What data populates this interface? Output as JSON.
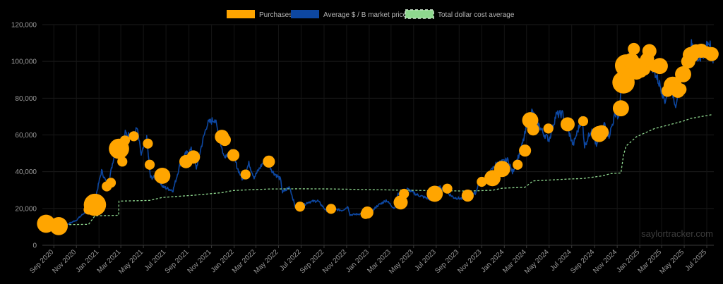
{
  "chart_data": {
    "type": "scatter",
    "title": "",
    "xlabel": "",
    "ylabel": "",
    "ylim": [
      0,
      120000
    ],
    "y_ticks": [
      0,
      20000,
      40000,
      60000,
      80000,
      100000,
      120000
    ],
    "y_tick_labels": [
      "0",
      "20,000",
      "40,000",
      "60,000",
      "80,000",
      "100,000",
      "120,000"
    ],
    "x_range": [
      "2020-08-01",
      "2025-07-20"
    ],
    "x_ticks": [
      "2020-09-01",
      "2020-11-01",
      "2021-01-01",
      "2021-03-01",
      "2021-05-01",
      "2021-07-01",
      "2021-09-01",
      "2021-11-01",
      "2022-01-01",
      "2022-03-01",
      "2022-05-01",
      "2022-07-01",
      "2022-09-01",
      "2022-11-01",
      "2023-01-01",
      "2023-03-01",
      "2023-05-01",
      "2023-07-01",
      "2023-09-01",
      "2023-11-01",
      "2024-01-01",
      "2024-03-01",
      "2024-05-01",
      "2024-07-01",
      "2024-09-01",
      "2024-11-01",
      "2025-01-01",
      "2025-03-01",
      "2025-05-01",
      "2025-07-01"
    ],
    "x_tick_labels": [
      "Sep 2020",
      "Nov 2020",
      "Jan 2021",
      "Mar 2021",
      "May 2021",
      "Jul 2021",
      "Sep 2021",
      "Nov 2021",
      "Jan 2022",
      "Mar 2022",
      "May 2022",
      "Jul 2022",
      "Sep 2022",
      "Nov 2022",
      "Jan 2023",
      "Mar 2023",
      "May 2023",
      "Jul 2023",
      "Sep 2023",
      "Nov 2023",
      "Jan 2024",
      "Mar 2024",
      "May 2024",
      "Jul 2024",
      "Sep 2024",
      "Nov 2024",
      "Jan 2025",
      "Mar 2025",
      "May 2025",
      "Jul 2025"
    ],
    "grid": true,
    "legend_position": "top-center",
    "legend": [
      {
        "label": "Purchases",
        "color": "#ffa500",
        "style": "fill"
      },
      {
        "label": "Average $ / B market price",
        "color": "#0d47a1",
        "style": "fill"
      },
      {
        "label": "Total dollar cost average",
        "color": "#8fd88f",
        "style": "dashed"
      }
    ],
    "series": [
      {
        "name": "Purchases",
        "type": "bubble",
        "color": "#ffa500",
        "points": [
          {
            "x": "2020-08-11",
            "y": 11700,
            "size": 3
          },
          {
            "x": "2020-09-14",
            "y": 10400,
            "size": 3
          },
          {
            "x": "2020-12-04",
            "y": 19400,
            "size": 1
          },
          {
            "x": "2020-12-21",
            "y": 22000,
            "size": 4
          },
          {
            "x": "2021-01-22",
            "y": 32000,
            "size": 1
          },
          {
            "x": "2021-02-02",
            "y": 34000,
            "size": 1
          },
          {
            "x": "2021-02-24",
            "y": 52500,
            "size": 3.5
          },
          {
            "x": "2021-03-05",
            "y": 45500,
            "size": 1
          },
          {
            "x": "2021-03-12",
            "y": 57000,
            "size": 1
          },
          {
            "x": "2021-04-05",
            "y": 59300,
            "size": 1
          },
          {
            "x": "2021-05-13",
            "y": 55300,
            "size": 1
          },
          {
            "x": "2021-05-18",
            "y": 43800,
            "size": 1
          },
          {
            "x": "2021-06-21",
            "y": 37800,
            "size": 2.5
          },
          {
            "x": "2021-08-24",
            "y": 45500,
            "size": 1.8
          },
          {
            "x": "2021-09-13",
            "y": 48000,
            "size": 1.8
          },
          {
            "x": "2021-11-29",
            "y": 59000,
            "size": 2
          },
          {
            "x": "2021-12-07",
            "y": 57300,
            "size": 1.5
          },
          {
            "x": "2021-12-30",
            "y": 49000,
            "size": 1.5
          },
          {
            "x": "2022-02-01",
            "y": 38500,
            "size": 1
          },
          {
            "x": "2022-04-05",
            "y": 45500,
            "size": 1.5
          },
          {
            "x": "2022-06-28",
            "y": 21000,
            "size": 1
          },
          {
            "x": "2022-09-20",
            "y": 19800,
            "size": 1
          },
          {
            "x": "2022-12-22",
            "y": 17000,
            "size": 1
          },
          {
            "x": "2022-12-27",
            "y": 17800,
            "size": 1.5
          },
          {
            "x": "2023-03-27",
            "y": 23300,
            "size": 2
          },
          {
            "x": "2023-04-05",
            "y": 28000,
            "size": 1
          },
          {
            "x": "2023-06-27",
            "y": 28000,
            "size": 2.5
          },
          {
            "x": "2023-07-31",
            "y": 30800,
            "size": 1
          },
          {
            "x": "2023-09-24",
            "y": 27000,
            "size": 1.5
          },
          {
            "x": "2023-11-01",
            "y": 34500,
            "size": 1
          },
          {
            "x": "2023-11-30",
            "y": 36500,
            "size": 2.5
          },
          {
            "x": "2023-12-26",
            "y": 41500,
            "size": 2.5
          },
          {
            "x": "2024-02-06",
            "y": 43800,
            "size": 1
          },
          {
            "x": "2024-02-26",
            "y": 51500,
            "size": 1.5
          },
          {
            "x": "2024-03-11",
            "y": 68000,
            "size": 2.5
          },
          {
            "x": "2024-03-19",
            "y": 63000,
            "size": 1.5
          },
          {
            "x": "2024-04-29",
            "y": 63500,
            "size": 1
          },
          {
            "x": "2024-06-20",
            "y": 65800,
            "size": 2
          },
          {
            "x": "2024-08-01",
            "y": 67500,
            "size": 1
          },
          {
            "x": "2024-09-13",
            "y": 60500,
            "size": 2.5
          },
          {
            "x": "2024-09-20",
            "y": 61500,
            "size": 2
          },
          {
            "x": "2024-11-11",
            "y": 74500,
            "size": 2.5
          },
          {
            "x": "2024-11-18",
            "y": 88600,
            "size": 4
          },
          {
            "x": "2024-11-25",
            "y": 97800,
            "size": 4
          },
          {
            "x": "2024-12-02",
            "y": 95900,
            "size": 2.5
          },
          {
            "x": "2024-12-09",
            "y": 100200,
            "size": 2.5
          },
          {
            "x": "2024-12-16",
            "y": 106800,
            "size": 1.5
          },
          {
            "x": "2024-12-23",
            "y": 94500,
            "size": 2.5
          },
          {
            "x": "2024-12-30",
            "y": 97900,
            "size": 2
          },
          {
            "x": "2025-01-06",
            "y": 94000,
            "size": 1
          },
          {
            "x": "2025-01-13",
            "y": 95600,
            "size": 1.5
          },
          {
            "x": "2025-01-21",
            "y": 101000,
            "size": 2
          },
          {
            "x": "2025-01-27",
            "y": 105600,
            "size": 2
          },
          {
            "x": "2025-02-10",
            "y": 97500,
            "size": 1.5
          },
          {
            "x": "2025-02-24",
            "y": 97500,
            "size": 2.5
          },
          {
            "x": "2025-03-17",
            "y": 84000,
            "size": 1.5
          },
          {
            "x": "2025-03-31",
            "y": 86800,
            "size": 3
          },
          {
            "x": "2025-04-14",
            "y": 84000,
            "size": 2
          },
          {
            "x": "2025-04-21",
            "y": 84800,
            "size": 1.5
          },
          {
            "x": "2025-04-28",
            "y": 93000,
            "size": 2.5
          },
          {
            "x": "2025-05-12",
            "y": 100000,
            "size": 2
          },
          {
            "x": "2025-05-19",
            "y": 103500,
            "size": 2.5
          },
          {
            "x": "2025-06-02",
            "y": 105500,
            "size": 2
          },
          {
            "x": "2025-06-16",
            "y": 105800,
            "size": 2
          },
          {
            "x": "2025-06-30",
            "y": 105000,
            "size": 1.5
          },
          {
            "x": "2025-07-14",
            "y": 104000,
            "size": 2
          }
        ]
      },
      {
        "name": "Average $ / B market price",
        "type": "line",
        "color": "#0d47a1",
        "points": [
          [
            "2020-08-11",
            11600
          ],
          [
            "2020-09-01",
            11500
          ],
          [
            "2020-10-01",
            10700
          ],
          [
            "2020-11-01",
            13700
          ],
          [
            "2020-12-01",
            19200
          ],
          [
            "2020-12-20",
            23500
          ],
          [
            "2021-01-08",
            40500
          ],
          [
            "2021-01-25",
            32000
          ],
          [
            "2021-02-08",
            46000
          ],
          [
            "2021-02-21",
            57000
          ],
          [
            "2021-03-01",
            49500
          ],
          [
            "2021-03-13",
            61000
          ],
          [
            "2021-04-01",
            58800
          ],
          [
            "2021-04-14",
            63500
          ],
          [
            "2021-04-25",
            49000
          ],
          [
            "2021-05-10",
            58000
          ],
          [
            "2021-05-20",
            37000
          ],
          [
            "2021-06-10",
            36500
          ],
          [
            "2021-06-22",
            31800
          ],
          [
            "2021-07-20",
            29800
          ],
          [
            "2021-08-10",
            45500
          ],
          [
            "2021-08-23",
            49500
          ],
          [
            "2021-09-07",
            52000
          ],
          [
            "2021-09-21",
            42000
          ],
          [
            "2021-10-06",
            55000
          ],
          [
            "2021-10-20",
            65900
          ],
          [
            "2021-11-10",
            68800
          ],
          [
            "2021-11-24",
            57000
          ],
          [
            "2021-12-04",
            48500
          ],
          [
            "2021-12-27",
            51000
          ],
          [
            "2022-01-10",
            42000
          ],
          [
            "2022-01-24",
            35500
          ],
          [
            "2022-02-10",
            44500
          ],
          [
            "2022-02-24",
            37000
          ],
          [
            "2022-03-28",
            47500
          ],
          [
            "2022-04-15",
            40000
          ],
          [
            "2022-05-06",
            36000
          ],
          [
            "2022-05-12",
            28700
          ],
          [
            "2022-05-31",
            31800
          ],
          [
            "2022-06-15",
            21000
          ],
          [
            "2022-06-28",
            20500
          ],
          [
            "2022-07-20",
            23500
          ],
          [
            "2022-08-15",
            24200
          ],
          [
            "2022-09-07",
            18800
          ],
          [
            "2022-09-30",
            19500
          ],
          [
            "2022-10-20",
            19000
          ],
          [
            "2022-11-05",
            21000
          ],
          [
            "2022-11-10",
            16500
          ],
          [
            "2022-12-15",
            17200
          ],
          [
            "2023-01-01",
            16500
          ],
          [
            "2023-01-20",
            21000
          ],
          [
            "2023-02-16",
            24500
          ],
          [
            "2023-03-10",
            20000
          ],
          [
            "2023-03-20",
            27800
          ],
          [
            "2023-04-14",
            30500
          ],
          [
            "2023-05-10",
            27500
          ],
          [
            "2023-06-15",
            25000
          ],
          [
            "2023-06-23",
            30500
          ],
          [
            "2023-07-13",
            31500
          ],
          [
            "2023-08-17",
            26000
          ],
          [
            "2023-09-11",
            25200
          ],
          [
            "2023-10-16",
            28500
          ],
          [
            "2023-10-24",
            34500
          ],
          [
            "2023-11-15",
            37000
          ],
          [
            "2023-12-08",
            44000
          ],
          [
            "2024-01-11",
            46500
          ],
          [
            "2024-01-23",
            39500
          ],
          [
            "2024-02-15",
            52000
          ],
          [
            "2024-03-05",
            67000
          ],
          [
            "2024-03-14",
            73500
          ],
          [
            "2024-04-01",
            66000
          ],
          [
            "2024-04-17",
            60500
          ],
          [
            "2024-05-01",
            57500
          ],
          [
            "2024-05-20",
            71000
          ],
          [
            "2024-06-07",
            71500
          ],
          [
            "2024-07-05",
            54500
          ],
          [
            "2024-07-29",
            69500
          ],
          [
            "2024-08-05",
            54000
          ],
          [
            "2024-08-25",
            64000
          ],
          [
            "2024-09-06",
            53500
          ],
          [
            "2024-09-27",
            66000
          ],
          [
            "2024-10-10",
            59500
          ],
          [
            "2024-10-29",
            73000
          ],
          [
            "2024-11-05",
            68000
          ],
          [
            "2024-11-13",
            90000
          ],
          [
            "2024-11-22",
            98800
          ],
          [
            "2024-12-05",
            103000
          ],
          [
            "2024-12-17",
            107500
          ],
          [
            "2024-12-30",
            92000
          ],
          [
            "2025-01-20",
            106000
          ],
          [
            "2025-02-03",
            97500
          ],
          [
            "2025-02-25",
            87000
          ],
          [
            "2025-03-10",
            78500
          ],
          [
            "2025-03-24",
            87500
          ],
          [
            "2025-04-08",
            76500
          ],
          [
            "2025-04-25",
            94500
          ],
          [
            "2025-05-22",
            110000
          ],
          [
            "2025-06-05",
            101000
          ],
          [
            "2025-06-20",
            104000
          ],
          [
            "2025-07-10",
            111500
          ],
          [
            "2025-07-18",
            99000
          ]
        ]
      },
      {
        "name": "Total dollar cost average",
        "type": "line",
        "style": "dashed",
        "color": "#8fd88f",
        "points": [
          [
            "2020-08-11",
            11600
          ],
          [
            "2020-09-14",
            11100
          ],
          [
            "2020-12-04",
            11400
          ],
          [
            "2020-12-21",
            16000
          ],
          [
            "2021-02-23",
            16300
          ],
          [
            "2021-02-24",
            24000
          ],
          [
            "2021-05-18",
            24400
          ],
          [
            "2021-06-21",
            26000
          ],
          [
            "2021-09-13",
            27200
          ],
          [
            "2021-11-29",
            28600
          ],
          [
            "2021-12-30",
            29800
          ],
          [
            "2022-04-05",
            30600
          ],
          [
            "2022-06-28",
            30700
          ],
          [
            "2022-09-20",
            30650
          ],
          [
            "2022-12-27",
            30300
          ],
          [
            "2023-03-27",
            30000
          ],
          [
            "2023-06-27",
            29700
          ],
          [
            "2023-09-24",
            29500
          ],
          [
            "2023-11-30",
            29900
          ],
          [
            "2023-12-26",
            31000
          ],
          [
            "2024-02-26",
            31600
          ],
          [
            "2024-03-19",
            35000
          ],
          [
            "2024-06-20",
            36000
          ],
          [
            "2024-08-01",
            36300
          ],
          [
            "2024-09-20",
            37700
          ],
          [
            "2024-10-15",
            39000
          ],
          [
            "2024-11-11",
            39300
          ],
          [
            "2024-11-18",
            49000
          ],
          [
            "2024-11-25",
            54000
          ],
          [
            "2024-12-23",
            59000
          ],
          [
            "2025-02-10",
            63500
          ],
          [
            "2025-03-31",
            66000
          ],
          [
            "2025-04-28",
            67500
          ],
          [
            "2025-05-19",
            69000
          ],
          [
            "2025-07-14",
            71000
          ]
        ]
      }
    ],
    "watermark": "saylortracker.com"
  }
}
